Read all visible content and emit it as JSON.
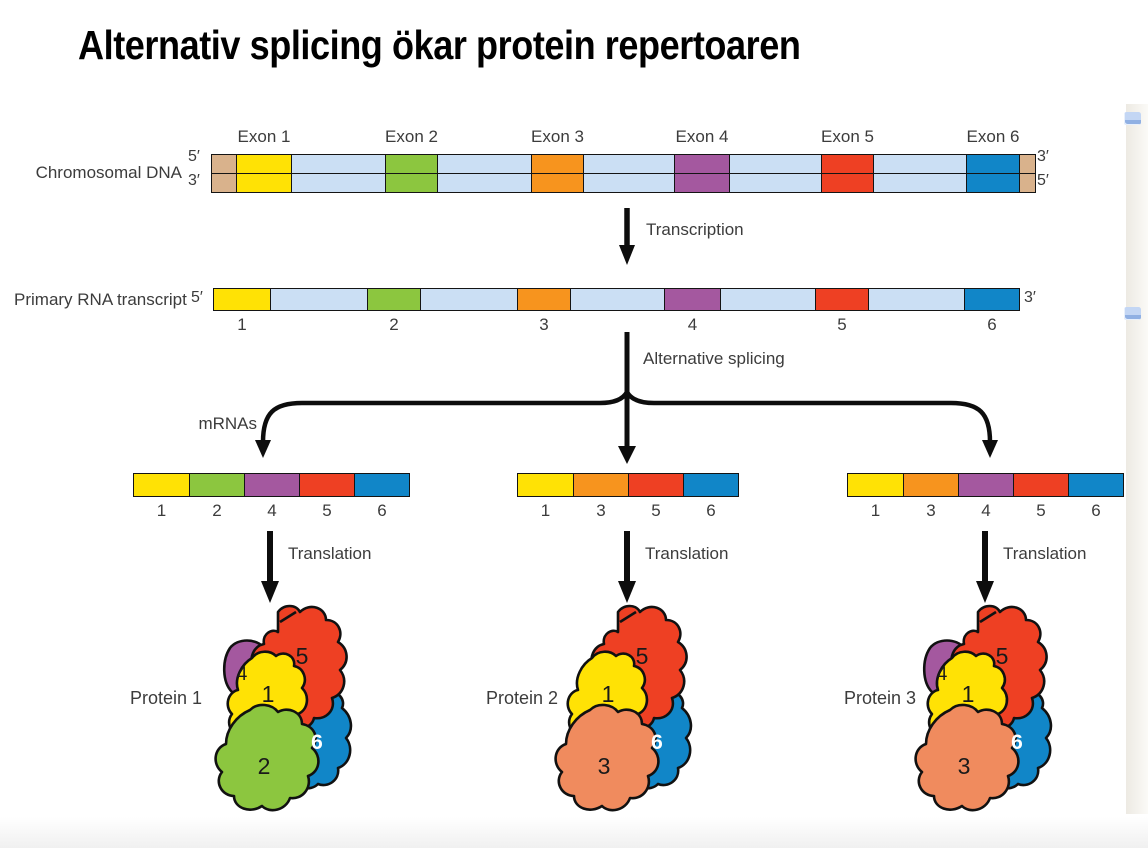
{
  "title": "Alternativ splicing ökar protein repertoaren",
  "colors": {
    "exon1": "#FFE205",
    "exon2": "#8CC63F",
    "exon3": "#F7941E",
    "exon4": "#A4589F",
    "exon5": "#EE4023",
    "exon6": "#1186C8",
    "intron": "#CBDFF4",
    "tan": "#D9B28C",
    "subunit3": "#F08B5E",
    "outline": "#141414"
  },
  "icons": {
    "right_markers": "scroll-marker"
  },
  "dna": {
    "label": "Chromosomal DNA",
    "five_prime_left": "5′",
    "three_prime_left": "3′",
    "three_prime_right": "3′",
    "five_prime_right": "5′",
    "exon_labels": [
      "Exon 1",
      "Exon 2",
      "Exon 3",
      "Exon 4",
      "Exon 5",
      "Exon 6"
    ],
    "segments": [
      "tan",
      "exon:1",
      "intron",
      "exon:2",
      "intron",
      "exon:3",
      "intron",
      "exon:4",
      "intron",
      "exon:5",
      "intron",
      "exon:6",
      "tan"
    ]
  },
  "transcription": {
    "label": "Transcription"
  },
  "rna": {
    "label": "Primary RNA transcript",
    "five_prime": "5′",
    "three_prime": "3′",
    "segments": [
      "exon:1",
      "intron",
      "exon:2",
      "intron",
      "exon:3",
      "intron",
      "exon:4",
      "intron",
      "exon:5",
      "intron",
      "exon:6"
    ],
    "numbers": [
      "1",
      "2",
      "3",
      "4",
      "5",
      "6"
    ]
  },
  "splicing": {
    "label": "Alternative splicing"
  },
  "mrnas": {
    "label": "mRNAs",
    "items": [
      {
        "exons": [
          "1",
          "2",
          "4",
          "5",
          "6"
        ]
      },
      {
        "exons": [
          "1",
          "3",
          "5",
          "6"
        ]
      },
      {
        "exons": [
          "1",
          "3",
          "4",
          "5",
          "6"
        ]
      }
    ]
  },
  "translation": {
    "label": "Translation"
  },
  "proteins": [
    {
      "label": "Protein 1",
      "subunits": [
        "4",
        "5",
        "1",
        "6",
        "2"
      ]
    },
    {
      "label": "Protein 2",
      "subunits": [
        "5",
        "1",
        "6",
        "3"
      ]
    },
    {
      "label": "Protein 3",
      "subunits": [
        "4",
        "5",
        "1",
        "6",
        "3"
      ]
    }
  ]
}
